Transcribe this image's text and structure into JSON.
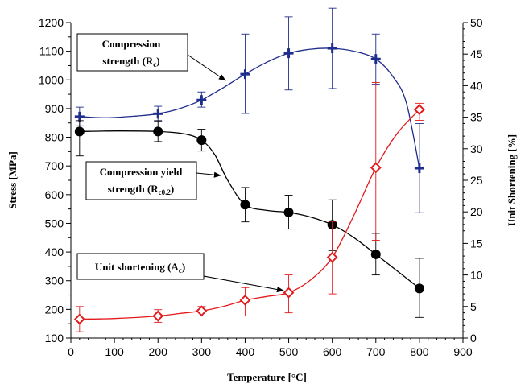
{
  "chart_data": {
    "type": "line",
    "x_axis": {
      "label": "Temperature [°C]",
      "range": [
        0,
        900
      ],
      "ticks": [
        0,
        100,
        200,
        300,
        400,
        500,
        600,
        700,
        800,
        900
      ]
    },
    "y_axis_left": {
      "label": "Stress [MPa]",
      "range": [
        100,
        1200
      ],
      "ticks": [
        100,
        200,
        300,
        400,
        500,
        600,
        700,
        800,
        900,
        1000,
        1100,
        1200
      ]
    },
    "y_axis_right": {
      "label": "Unit Shortening [%]",
      "range": [
        0,
        50
      ],
      "ticks": [
        0,
        5,
        10,
        15,
        20,
        25,
        30,
        35,
        40,
        45,
        50
      ]
    },
    "grid": false,
    "series": [
      {
        "key": "compression-strength",
        "axis": "left",
        "color": "#1f2d8c",
        "marker": "plus",
        "x": [
          20,
          200,
          300,
          400,
          500,
          600,
          700,
          800
        ],
        "y": [
          872,
          882,
          930,
          1020,
          1093,
          1110,
          1073,
          692
        ],
        "err_low": [
          840,
          855,
          905,
          883,
          965,
          970,
          985,
          537
        ],
        "err_high": [
          905,
          908,
          958,
          1160,
          1220,
          1250,
          1160,
          848
        ],
        "smooth": [
          [
            20,
            872
          ],
          [
            80,
            868
          ],
          [
            150,
            874
          ],
          [
            200,
            882
          ],
          [
            250,
            900
          ],
          [
            300,
            930
          ],
          [
            350,
            973
          ],
          [
            400,
            1020
          ],
          [
            450,
            1062
          ],
          [
            500,
            1093
          ],
          [
            550,
            1107
          ],
          [
            600,
            1110
          ],
          [
            650,
            1100
          ],
          [
            700,
            1073
          ],
          [
            740,
            1010
          ],
          [
            770,
            920
          ],
          [
            800,
            692
          ]
        ]
      },
      {
        "key": "compression-yield-strength",
        "axis": "left",
        "color": "#000000",
        "marker": "circle",
        "x": [
          20,
          200,
          300,
          400,
          500,
          600,
          700,
          800
        ],
        "y": [
          820,
          820,
          790,
          565,
          538,
          495,
          392,
          273
        ],
        "err_low": [
          735,
          785,
          752,
          505,
          480,
          405,
          320,
          172
        ],
        "err_high": [
          858,
          858,
          828,
          625,
          598,
          582,
          465,
          378
        ],
        "smooth": [
          [
            20,
            820
          ],
          [
            110,
            822
          ],
          [
            200,
            820
          ],
          [
            260,
            812
          ],
          [
            300,
            790
          ],
          [
            330,
            740
          ],
          [
            360,
            650
          ],
          [
            400,
            565
          ],
          [
            450,
            545
          ],
          [
            500,
            538
          ],
          [
            550,
            522
          ],
          [
            600,
            495
          ],
          [
            650,
            450
          ],
          [
            700,
            392
          ],
          [
            750,
            333
          ],
          [
            800,
            273
          ]
        ]
      },
      {
        "key": "unit-shortening",
        "axis": "right",
        "color": "#e31a1c",
        "marker": "diamond",
        "x": [
          20,
          200,
          300,
          400,
          500,
          600,
          700,
          800
        ],
        "y": [
          3.0,
          3.5,
          4.3,
          6.0,
          7.2,
          12.8,
          27.0,
          36.2
        ],
        "err_low": [
          1.0,
          2.5,
          3.5,
          3.5,
          4.0,
          7.0,
          15.5,
          34.5
        ],
        "err_high": [
          5.0,
          4.5,
          5.0,
          8.0,
          10.0,
          18.5,
          40.5,
          37.2
        ],
        "smooth": [
          [
            20,
            3.0
          ],
          [
            100,
            3.1
          ],
          [
            200,
            3.5
          ],
          [
            250,
            3.9
          ],
          [
            300,
            4.3
          ],
          [
            350,
            5.0
          ],
          [
            400,
            6.0
          ],
          [
            450,
            6.6
          ],
          [
            500,
            7.2
          ],
          [
            550,
            9.2
          ],
          [
            600,
            12.8
          ],
          [
            650,
            19.5
          ],
          [
            700,
            27.0
          ],
          [
            750,
            32.5
          ],
          [
            800,
            36.2
          ]
        ]
      }
    ],
    "annotations": [
      {
        "key": "ann-compression-strength",
        "lines": [
          "Compression",
          "strength (R"
        ],
        "sub": "c",
        "tail": ")"
      },
      {
        "key": "ann-yield-strength",
        "lines": [
          "Compression yield",
          "strength (R"
        ],
        "sub": "c0.2",
        "tail": ")"
      },
      {
        "key": "ann-unit-shortening",
        "lines": [
          "Unit shortening (A"
        ],
        "sub": "c",
        "tail": ")"
      }
    ]
  }
}
